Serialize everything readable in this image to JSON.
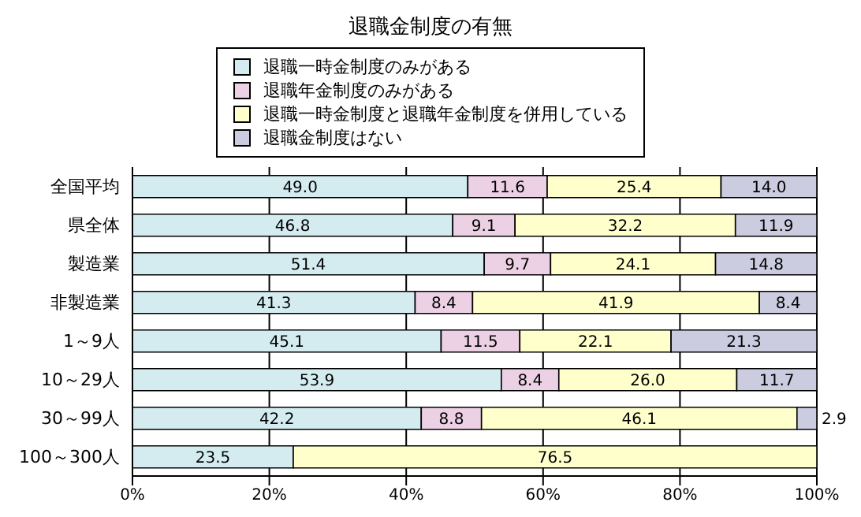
{
  "chart_data": {
    "type": "bar",
    "title": "退職金制度の有無",
    "orientation": "horizontal",
    "stacked": true,
    "legend": "top",
    "grid": "x",
    "categories": [
      "全国平均",
      "県全体",
      "製造業",
      "非製造業",
      "1～9人",
      "10～29人",
      "30～99人",
      "100～300人"
    ],
    "xlim": [
      0,
      100
    ],
    "xticks": [
      {
        "value": 0,
        "label": "0%"
      },
      {
        "value": 20,
        "label": "20%"
      },
      {
        "value": 40,
        "label": "40%"
      },
      {
        "value": 60,
        "label": "60%"
      },
      {
        "value": 80,
        "label": "80%"
      },
      {
        "value": 100,
        "label": "100%"
      }
    ],
    "series": [
      {
        "name": "退職一時金制度のみがある",
        "color": "#d4ecf0",
        "values": [
          49.0,
          46.8,
          51.4,
          41.3,
          45.1,
          53.9,
          42.2,
          23.5
        ],
        "value_labels": [
          "49.0",
          "46.8",
          "51.4",
          "41.3",
          "45.1",
          "53.9",
          "42.2",
          "23.5"
        ]
      },
      {
        "name": "退職年金制度のみがある",
        "color": "#ecd0e4",
        "values": [
          11.6,
          9.1,
          9.7,
          8.4,
          11.5,
          8.4,
          8.8,
          null
        ],
        "value_labels": [
          "11.6",
          "9.1",
          "9.7",
          "8.4",
          "11.5",
          "8.4",
          "8.8",
          null
        ]
      },
      {
        "name": "退職一時金制度と退職年金制度を併用している",
        "color": "#ffffcc",
        "values": [
          25.4,
          32.2,
          24.1,
          41.9,
          22.1,
          26.0,
          46.1,
          76.5
        ],
        "value_labels": [
          "25.4",
          "32.2",
          "24.1",
          "41.9",
          "22.1",
          "26.0",
          "46.1",
          "76.5"
        ]
      },
      {
        "name": "退職金制度はない",
        "color": "#cccce0",
        "values": [
          14.0,
          11.9,
          14.8,
          8.4,
          21.3,
          11.7,
          2.9,
          null
        ],
        "value_labels": [
          "14.0",
          "11.9",
          "14.8",
          "8.4",
          "21.3",
          "11.7",
          "2.9",
          null
        ]
      }
    ]
  }
}
